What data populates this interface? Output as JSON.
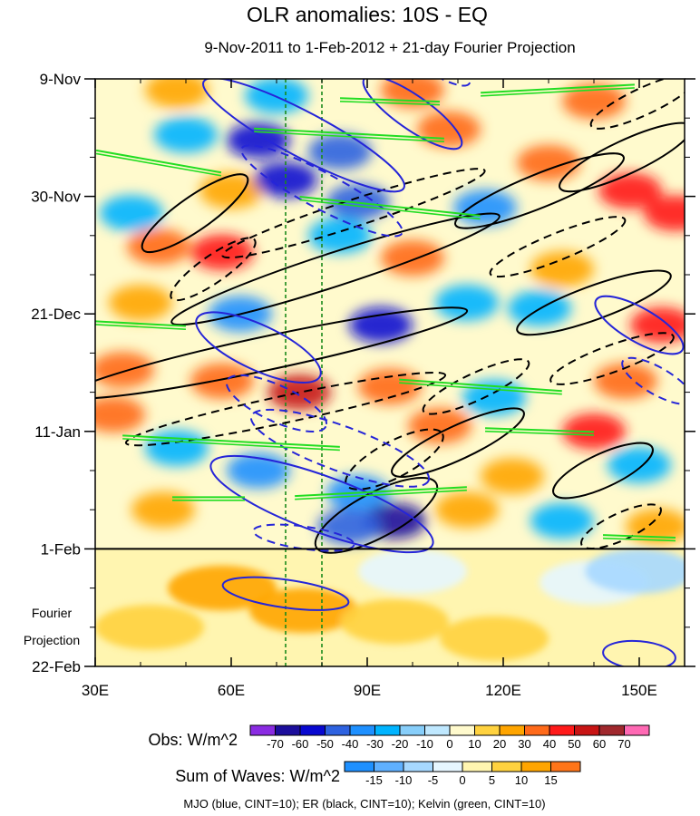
{
  "chart_data": {
    "type": "heatmap",
    "title": "OLR anomalies: 10S - EQ",
    "subtitle": "9-Nov-2011 to 1-Feb-2012 + 21-day Fourier Projection",
    "x": {
      "range_deg_E": [
        30,
        160
      ],
      "tick_values": [
        30,
        60,
        90,
        120,
        150
      ],
      "tick_labels": [
        "30E",
        "60E",
        "90E",
        "120E",
        "150E"
      ]
    },
    "y": {
      "range_days_from_9Nov2011": [
        0,
        105
      ],
      "tick_values": [
        0,
        21,
        42,
        63,
        84,
        105
      ],
      "tick_labels": [
        "9-Nov",
        "30-Nov",
        "21-Dec",
        "11-Jan",
        "1-Feb",
        "22-Feb"
      ],
      "observation_end_day": 84
    },
    "projection_label": [
      "Fourier",
      "Projection"
    ],
    "reference_longitudes_deg_E": [
      72,
      80
    ],
    "obs_colorbar": {
      "label": "Obs: W/m^2",
      "levels": [
        -70,
        -60,
        -50,
        -40,
        -30,
        -20,
        -10,
        0,
        10,
        20,
        30,
        40,
        50,
        60,
        70
      ],
      "level_labels": [
        "-70",
        "-60",
        "-50",
        "-40",
        "-30",
        "-20",
        "-10",
        "0",
        "10",
        "20",
        "30",
        "40",
        "50",
        "60",
        "70"
      ],
      "colors": [
        "#8a2be2",
        "#1c0e9c",
        "#0808d0",
        "#2e62e0",
        "#1e90ff",
        "#00b4ff",
        "#87cefa",
        "#bfe8ff",
        "#fffacd",
        "#ffd23f",
        "#ffa500",
        "#ff6a1a",
        "#ff1a1a",
        "#c81414",
        "#a0282d",
        "#ff69b4"
      ]
    },
    "waves_colorbar": {
      "label": "Sum of Waves: W/m^2",
      "levels": [
        -15,
        -10,
        -5,
        0,
        5,
        10,
        15
      ],
      "level_labels": [
        "-15",
        "-10",
        "-5",
        "0",
        "5",
        "10",
        "15"
      ],
      "colors": [
        "#1e90ff",
        "#5fb0ff",
        "#a6d8ff",
        "#e6f6ff",
        "#fff5b0",
        "#ffd23f",
        "#ffa500",
        "#ff7518"
      ]
    },
    "contour_legend": "MJO (blue, CINT=10); ER (black, CINT=10); Kelvin (green, CINT=10)",
    "series_colors": {
      "mjo": "#2525d8",
      "er": "#000000",
      "kelvin": "#22dd22"
    },
    "approx_patches": [
      {
        "lon": 48,
        "day": 2,
        "value": 25
      },
      {
        "lon": 70,
        "day": 3,
        "value": -30
      },
      {
        "lon": 100,
        "day": 2,
        "value": 35
      },
      {
        "lon": 140,
        "day": 4,
        "value": 30
      },
      {
        "lon": 50,
        "day": 10,
        "value": -30
      },
      {
        "lon": 66,
        "day": 11,
        "value": -55
      },
      {
        "lon": 84,
        "day": 13,
        "value": -45
      },
      {
        "lon": 108,
        "day": 9,
        "value": 30
      },
      {
        "lon": 130,
        "day": 15,
        "value": 35
      },
      {
        "lon": 158,
        "day": 24,
        "value": 45
      },
      {
        "lon": 38,
        "day": 24,
        "value": -25
      },
      {
        "lon": 60,
        "day": 20,
        "value": 20
      },
      {
        "lon": 72,
        "day": 18,
        "value": -60
      },
      {
        "lon": 88,
        "day": 22,
        "value": -50
      },
      {
        "lon": 116,
        "day": 23,
        "value": -35
      },
      {
        "lon": 148,
        "day": 20,
        "value": 40
      },
      {
        "lon": 58,
        "day": 31,
        "value": 40
      },
      {
        "lon": 44,
        "day": 30,
        "value": 30
      },
      {
        "lon": 84,
        "day": 28,
        "value": -30
      },
      {
        "lon": 100,
        "day": 32,
        "value": 30
      },
      {
        "lon": 133,
        "day": 34,
        "value": 20
      },
      {
        "lon": 40,
        "day": 40,
        "value": 25
      },
      {
        "lon": 62,
        "day": 42,
        "value": -35
      },
      {
        "lon": 93,
        "day": 44,
        "value": -60
      },
      {
        "lon": 128,
        "day": 41,
        "value": -30
      },
      {
        "lon": 155,
        "day": 44,
        "value": 45
      },
      {
        "lon": 112,
        "day": 40,
        "value": -25
      },
      {
        "lon": 36,
        "day": 52,
        "value": 35
      },
      {
        "lon": 58,
        "day": 54,
        "value": 30
      },
      {
        "lon": 75,
        "day": 56,
        "value": 50
      },
      {
        "lon": 95,
        "day": 55,
        "value": 35
      },
      {
        "lon": 118,
        "day": 57,
        "value": -25
      },
      {
        "lon": 147,
        "day": 54,
        "value": 30
      },
      {
        "lon": 34,
        "day": 60,
        "value": 30
      },
      {
        "lon": 106,
        "day": 62,
        "value": 30
      },
      {
        "lon": 140,
        "day": 63,
        "value": 45
      },
      {
        "lon": 48,
        "day": 66,
        "value": -25
      },
      {
        "lon": 66,
        "day": 70,
        "value": -40
      },
      {
        "lon": 88,
        "day": 74,
        "value": -40
      },
      {
        "lon": 122,
        "day": 71,
        "value": 25
      },
      {
        "lon": 150,
        "day": 69,
        "value": -30
      },
      {
        "lon": 45,
        "day": 77,
        "value": 25
      },
      {
        "lon": 96,
        "day": 79,
        "value": -65
      },
      {
        "lon": 86,
        "day": 80,
        "value": -45
      },
      {
        "lon": 133,
        "day": 79,
        "value": -30
      },
      {
        "lon": 112,
        "day": 77,
        "value": 20
      },
      {
        "lon": 154,
        "day": 80,
        "value": 25
      }
    ],
    "approx_projection_patches": [
      {
        "lon": 42,
        "day": 98,
        "value": 5
      },
      {
        "lon": 58,
        "day": 91,
        "value": 10
      },
      {
        "lon": 76,
        "day": 95,
        "value": 12
      },
      {
        "lon": 96,
        "day": 97,
        "value": 8
      },
      {
        "lon": 118,
        "day": 100,
        "value": 5
      },
      {
        "lon": 140,
        "day": 90,
        "value": -5
      },
      {
        "lon": 150,
        "day": 88,
        "value": -8
      },
      {
        "lon": 100,
        "day": 88,
        "value": -3
      }
    ],
    "approx_mjo_ellipses": [
      {
        "lon": 76,
        "day": 10,
        "rx": 25,
        "ry": 4,
        "angle": 28
      },
      {
        "lon": 100,
        "day": 6,
        "rx": 13,
        "ry": 3,
        "angle": 35
      },
      {
        "lon": 66,
        "day": 48,
        "rx": 15,
        "ry": 4,
        "angle": 25
      },
      {
        "lon": 80,
        "day": 76,
        "rx": 26,
        "ry": 5,
        "angle": 20
      },
      {
        "lon": 150,
        "day": 44,
        "rx": 11,
        "ry": 3,
        "angle": 30
      },
      {
        "lon": 72,
        "day": 92,
        "rx": 14,
        "ry": 2.5,
        "angle": 8
      },
      {
        "lon": 150,
        "day": 103,
        "rx": 8,
        "ry": 2.5,
        "angle": 5
      }
    ],
    "approx_er_ellipses": [
      {
        "lon": 52,
        "day": 24,
        "rx": 14,
        "ry": 3,
        "angle": -35
      },
      {
        "lon": 83,
        "day": 34,
        "rx": 38,
        "ry": 3,
        "angle": -18
      },
      {
        "lon": 68,
        "day": 49,
        "rx": 45,
        "ry": 3,
        "angle": -12
      },
      {
        "lon": 92,
        "day": 78,
        "rx": 15,
        "ry": 4,
        "angle": -28
      },
      {
        "lon": 128,
        "day": 20,
        "rx": 20,
        "ry": 3,
        "angle": -22
      },
      {
        "lon": 147,
        "day": 14,
        "rx": 16,
        "ry": 3,
        "angle": -25
      },
      {
        "lon": 140,
        "day": 40,
        "rx": 18,
        "ry": 3,
        "angle": -20
      },
      {
        "lon": 110,
        "day": 65,
        "rx": 16,
        "ry": 3,
        "angle": -25
      },
      {
        "lon": 142,
        "day": 70,
        "rx": 12,
        "ry": 3,
        "angle": -25
      }
    ],
    "approx_kelvin_segments": [
      {
        "lon": 44,
        "day": 15,
        "len": 28,
        "angle": 10
      },
      {
        "lon": 95,
        "day": 23,
        "len": 40,
        "angle": 6
      },
      {
        "lon": 86,
        "day": 10,
        "len": 42,
        "angle": 3
      },
      {
        "lon": 95,
        "day": 4,
        "len": 22,
        "angle": 2
      },
      {
        "lon": 132,
        "day": 2,
        "len": 34,
        "angle": -3
      },
      {
        "lon": 40,
        "day": 44,
        "len": 20,
        "angle": 3
      },
      {
        "lon": 115,
        "day": 55,
        "len": 36,
        "angle": 4
      },
      {
        "lon": 60,
        "day": 65,
        "len": 48,
        "angle": 3
      },
      {
        "lon": 93,
        "day": 74,
        "len": 38,
        "angle": -3
      },
      {
        "lon": 128,
        "day": 63,
        "len": 24,
        "angle": 2
      },
      {
        "lon": 150,
        "day": 82,
        "len": 16,
        "angle": 2
      },
      {
        "lon": 55,
        "day": 75,
        "len": 16,
        "angle": 0
      }
    ]
  }
}
